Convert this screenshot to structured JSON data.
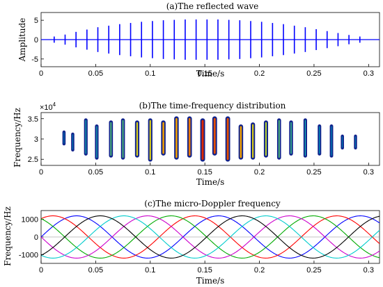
{
  "chart_data": [
    {
      "type": "line",
      "title": "(a)The reflected wave",
      "xlabel": "Time/s",
      "ylabel": "Amplitude",
      "xlim": [
        0,
        0.31
      ],
      "ylim": [
        -7,
        7
      ],
      "x_ticks": [
        "0",
        "0.05",
        "0.1",
        "0.15",
        "0.2",
        "0.25",
        "0.3"
      ],
      "y_ticks": [
        "5",
        "0",
        "-5"
      ],
      "grid": false,
      "line_color": "#0000ff",
      "pulse_times": [
        0.012,
        0.022,
        0.032,
        0.042,
        0.052,
        0.062,
        0.072,
        0.082,
        0.092,
        0.102,
        0.112,
        0.122,
        0.132,
        0.142,
        0.152,
        0.162,
        0.172,
        0.182,
        0.192,
        0.202,
        0.212,
        0.222,
        0.232,
        0.242,
        0.252,
        0.262,
        0.272,
        0.282,
        0.292
      ],
      "pulse_amplitudes": [
        0.8,
        1.3,
        2.0,
        2.6,
        3.2,
        3.6,
        4.0,
        4.3,
        4.6,
        4.8,
        5.0,
        5.1,
        5.2,
        5.2,
        5.2,
        5.2,
        5.1,
        5.0,
        4.8,
        4.6,
        4.3,
        4.0,
        3.6,
        3.2,
        2.7,
        2.2,
        1.7,
        1.2,
        0.8
      ]
    },
    {
      "type": "heatmap",
      "title": "(b)The time-frequency distribution",
      "xlabel": "Time/s",
      "ylabel": "Frequency/Hz",
      "exponent_label": "×10",
      "exponent_power": "4",
      "xlim": [
        0,
        0.31
      ],
      "ylim": [
        2.35,
        3.65
      ],
      "x_ticks": [
        "0",
        "0.05",
        "0.1",
        "0.15",
        "0.2",
        "0.25",
        "0.3"
      ],
      "y_ticks": [
        "3.5",
        "3",
        "2.5"
      ],
      "grid": false,
      "segments": [
        {
          "t": 0.021,
          "f_low": 2.85,
          "f_high": 3.2,
          "strength": 0.2
        },
        {
          "t": 0.029,
          "f_low": 2.7,
          "f_high": 3.15,
          "strength": 0.2
        },
        {
          "t": 0.041,
          "f_low": 2.6,
          "f_high": 3.5,
          "strength": 0.4
        },
        {
          "t": 0.051,
          "f_low": 2.5,
          "f_high": 3.35,
          "strength": 0.4
        },
        {
          "t": 0.064,
          "f_low": 2.55,
          "f_high": 3.45,
          "strength": 0.55
        },
        {
          "t": 0.075,
          "f_low": 2.5,
          "f_high": 3.5,
          "strength": 0.55
        },
        {
          "t": 0.088,
          "f_low": 2.55,
          "f_high": 3.45,
          "strength": 0.75
        },
        {
          "t": 0.1,
          "f_low": 2.45,
          "f_high": 3.5,
          "strength": 0.75
        },
        {
          "t": 0.112,
          "f_low": 2.6,
          "f_high": 3.45,
          "strength": 0.85
        },
        {
          "t": 0.124,
          "f_low": 2.5,
          "f_high": 3.55,
          "strength": 0.85
        },
        {
          "t": 0.136,
          "f_low": 2.55,
          "f_high": 3.55,
          "strength": 0.9
        },
        {
          "t": 0.148,
          "f_low": 2.45,
          "f_high": 3.5,
          "strength": 1.0
        },
        {
          "t": 0.159,
          "f_low": 2.6,
          "f_high": 3.55,
          "strength": 0.95
        },
        {
          "t": 0.171,
          "f_low": 2.45,
          "f_high": 3.55,
          "strength": 0.95
        },
        {
          "t": 0.183,
          "f_low": 2.5,
          "f_high": 3.35,
          "strength": 0.85
        },
        {
          "t": 0.194,
          "f_low": 2.5,
          "f_high": 3.4,
          "strength": 0.75
        },
        {
          "t": 0.206,
          "f_low": 2.55,
          "f_high": 3.45,
          "strength": 0.7
        },
        {
          "t": 0.218,
          "f_low": 2.5,
          "f_high": 3.5,
          "strength": 0.55
        },
        {
          "t": 0.229,
          "f_low": 2.6,
          "f_high": 3.45,
          "strength": 0.5
        },
        {
          "t": 0.242,
          "f_low": 2.55,
          "f_high": 3.5,
          "strength": 0.4
        },
        {
          "t": 0.255,
          "f_low": 2.6,
          "f_high": 3.35,
          "strength": 0.35
        },
        {
          "t": 0.266,
          "f_low": 2.55,
          "f_high": 3.35,
          "strength": 0.3
        },
        {
          "t": 0.276,
          "f_low": 2.75,
          "f_high": 3.1,
          "strength": 0.2
        },
        {
          "t": 0.288,
          "f_low": 2.75,
          "f_high": 3.1,
          "strength": 0.15
        }
      ]
    },
    {
      "type": "line",
      "title": "(c)The micro-Doppler frequency",
      "xlabel": "Time/s",
      "ylabel": "Frequency/Hz",
      "xlim": [
        0,
        0.31
      ],
      "ylim": [
        -1500,
        1500
      ],
      "x_ticks": [
        "0",
        "0.05",
        "0.1",
        "0.15",
        "0.2",
        "0.25",
        "0.3"
      ],
      "y_ticks": [
        "1000",
        "0",
        "-1000"
      ],
      "grid": false,
      "series": [
        {
          "color": "#0000ff",
          "amplitude": 1200,
          "period": 0.13,
          "phase_deg": 0
        },
        {
          "color": "#ff0000",
          "amplitude": 1200,
          "period": 0.13,
          "phase_deg": 60
        },
        {
          "color": "#00aa00",
          "amplitude": 1200,
          "period": 0.13,
          "phase_deg": 120
        },
        {
          "color": "#cc00cc",
          "amplitude": 1200,
          "period": 0.13,
          "phase_deg": 180
        },
        {
          "color": "#00cccc",
          "amplitude": 1200,
          "period": 0.13,
          "phase_deg": 240
        },
        {
          "color": "#000000",
          "amplitude": 1200,
          "period": 0.13,
          "phase_deg": 300
        }
      ]
    }
  ]
}
